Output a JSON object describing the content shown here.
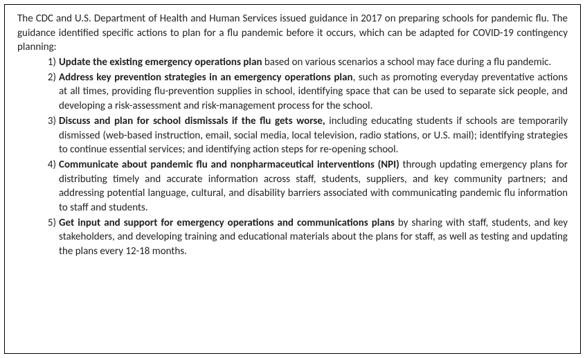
{
  "document": {
    "intro": "The CDC and U.S. Department of Health and Human Services issued guidance in 2017 on preparing schools for pandemic flu. The guidance identified specific actions to plan for a flu pandemic before it occurs, which can be adapted for COVID-19 contingency planning:",
    "items": [
      {
        "bold": "Update the existing emergency operations plan",
        "rest": " based on various scenarios a school may face during a flu pandemic."
      },
      {
        "bold": "Address key prevention strategies in an emergency operations plan",
        "rest": ", such as promoting everyday preventative actions at all times, providing flu-prevention supplies in school, identifying space that can be used to separate sick people, and developing a risk-assessment and risk-management process for the school."
      },
      {
        "bold": "Discuss and plan for school dismissals if the flu gets worse,",
        "rest": " including educating students if schools are temporarily dismissed (web-based instruction, email, social media, local television, radio stations, or U.S. mail); identifying strategies to continue essential services; and identifying action steps for re-opening school."
      },
      {
        "bold": "Communicate about pandemic flu and nonpharmaceutical interventions (NPI)",
        "rest": " through updating emergency plans for distributing timely and accurate information across staff, students, suppliers, and key community partners; and addressing potential language, cultural, and disability barriers associated with communicating pandemic flu information to staff and students."
      },
      {
        "bold": "Get input and support for emergency operations and communications plans",
        "rest": " by sharing with staff, students, and key stakeholders, and developing training and educational materials about the plans for staff, as well as testing and updating the plans every 12-18 months."
      }
    ],
    "border_color": "#000000",
    "text_color": "#222222",
    "background_color": "#ffffff",
    "font_family": "Calibri",
    "font_size": 15
  }
}
